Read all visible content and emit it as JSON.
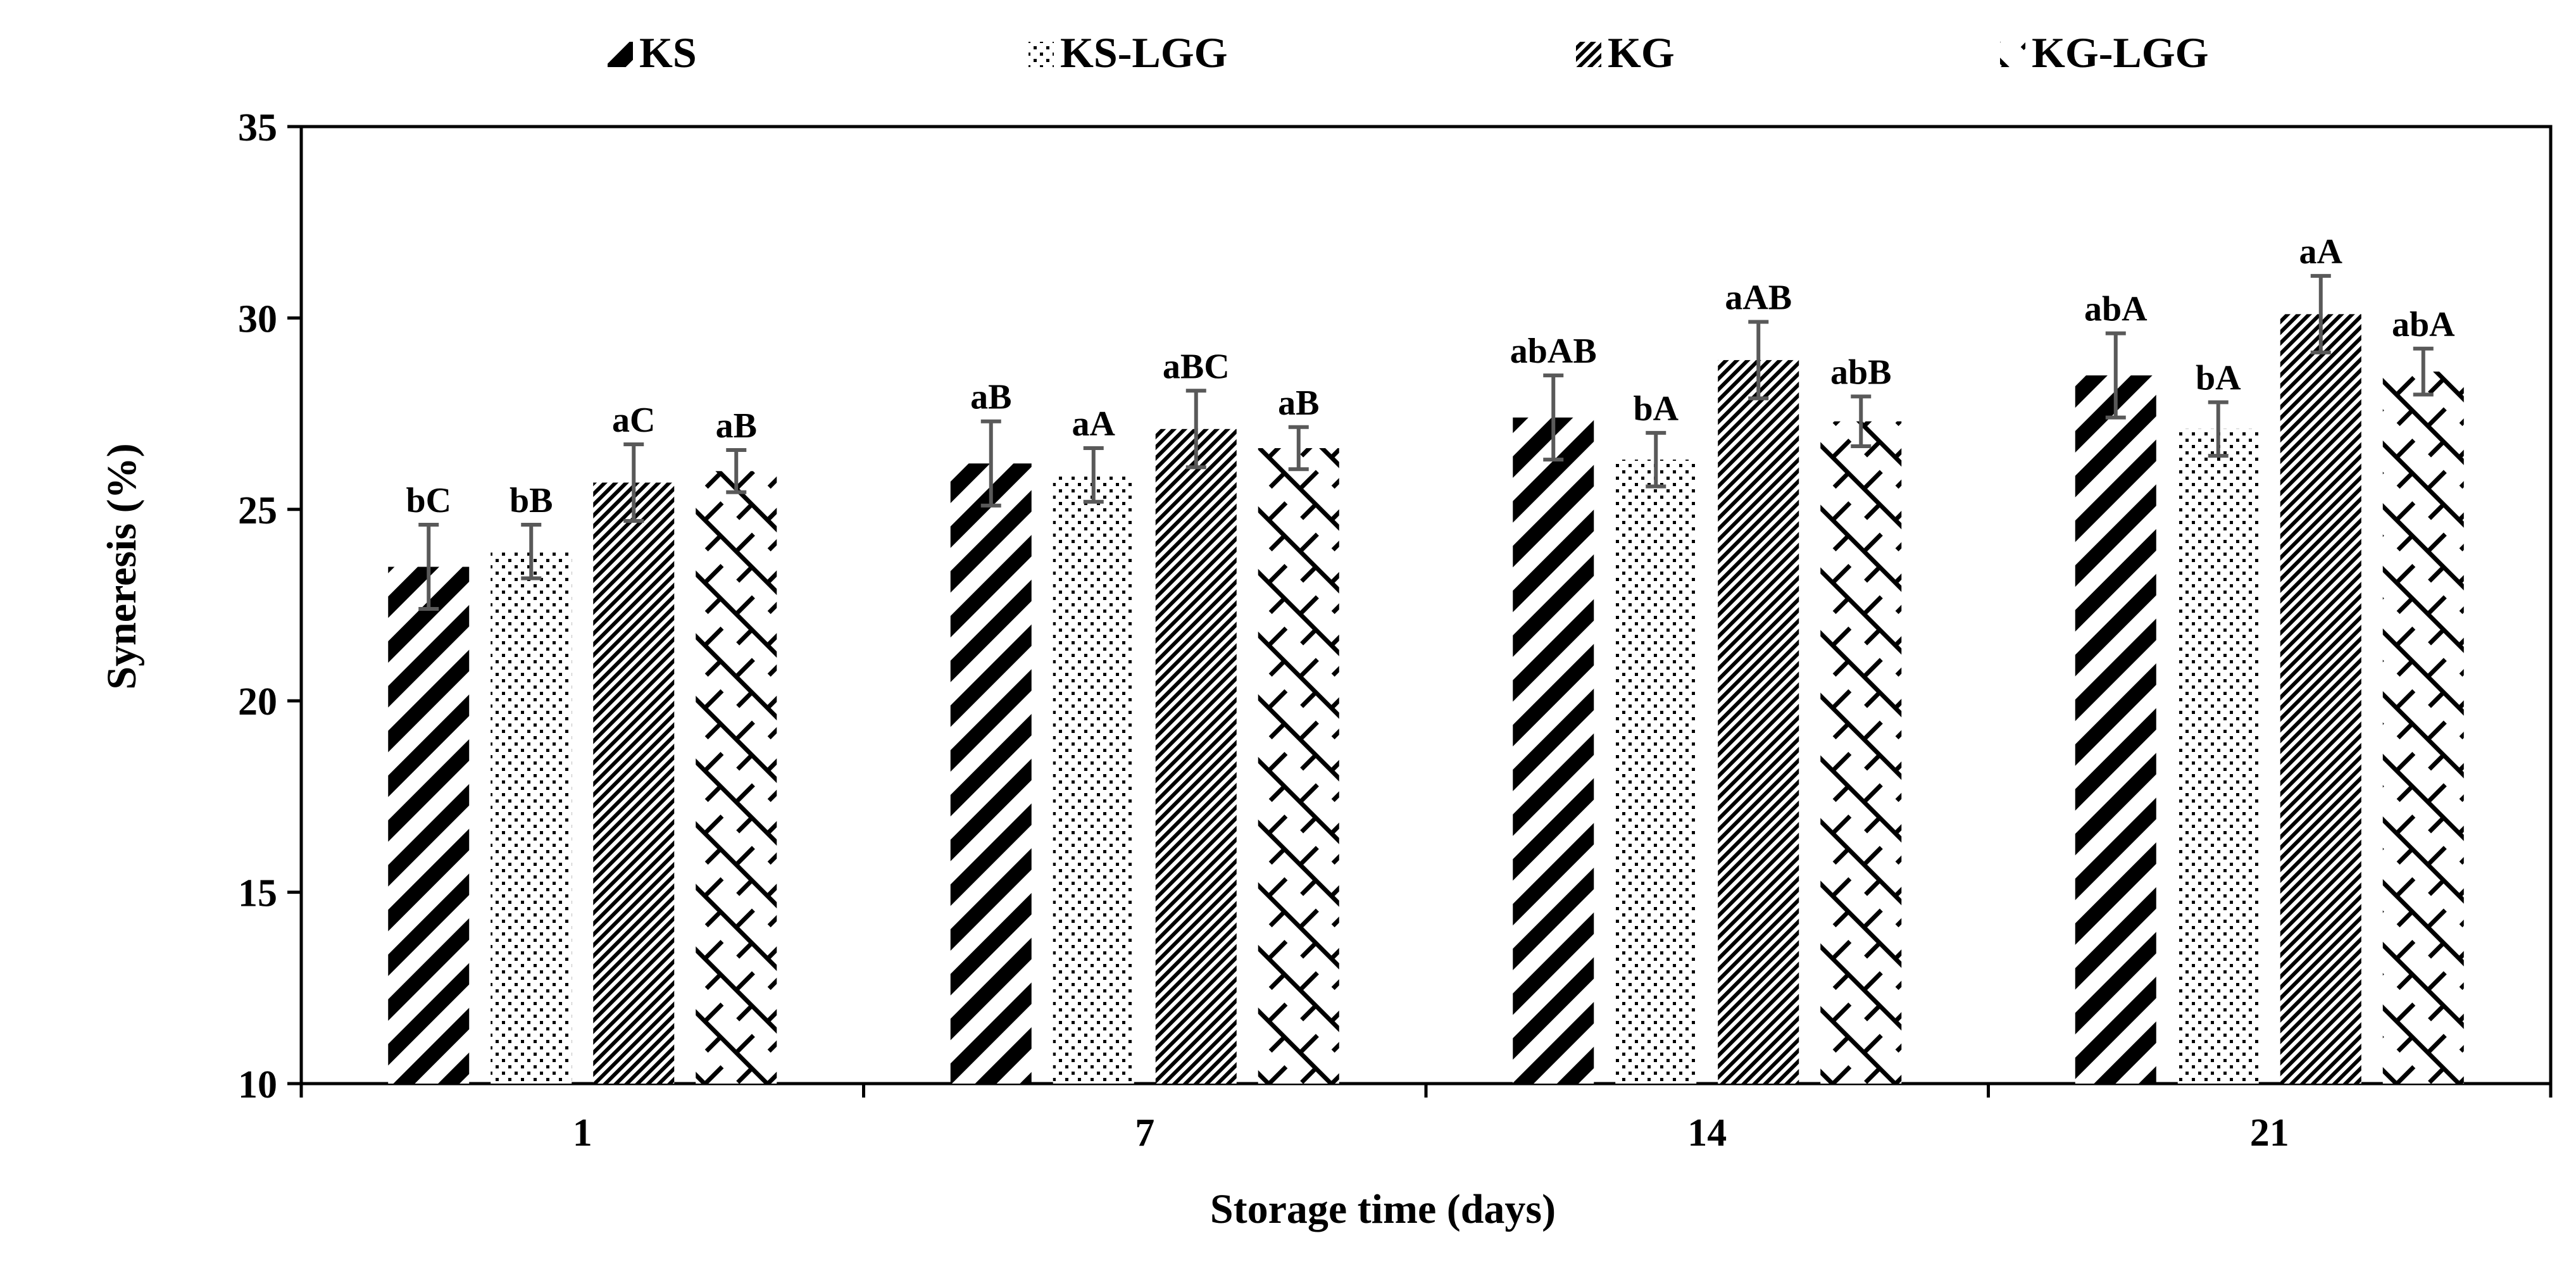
{
  "chart_data": {
    "type": "bar",
    "title": "",
    "xlabel": "Storage time (days)",
    "ylabel": "Syneresis (%)",
    "ylim": [
      10,
      35
    ],
    "yticks": [
      "10",
      "15",
      "20",
      "25",
      "30",
      "35"
    ],
    "categories": [
      "1",
      "7",
      "14",
      "21"
    ],
    "legend_position": "top",
    "grid": false,
    "series": [
      {
        "name": "KS",
        "pattern": "diagonal-thick",
        "values": [
          23.5,
          26.2,
          27.4,
          28.5
        ],
        "errors": [
          1.1,
          1.1,
          1.1,
          1.1
        ],
        "labels": [
          "bC",
          "aB",
          "abAB",
          "abA"
        ]
      },
      {
        "name": "KS-LGG",
        "pattern": "dots",
        "values": [
          23.9,
          25.9,
          26.3,
          27.1
        ],
        "errors": [
          0.7,
          0.7,
          0.7,
          0.7
        ],
        "labels": [
          "bB",
          "aA",
          "bA",
          "bA"
        ]
      },
      {
        "name": "KG",
        "pattern": "diagonal-fine",
        "values": [
          25.7,
          27.1,
          28.9,
          30.1
        ],
        "errors": [
          1.0,
          1.0,
          1.0,
          1.0
        ],
        "labels": [
          "aC",
          "aBC",
          "aAB",
          "aA"
        ]
      },
      {
        "name": "KG-LGG",
        "pattern": "lattice",
        "values": [
          26.0,
          26.6,
          27.3,
          28.6
        ],
        "errors": [
          0.55,
          0.55,
          0.65,
          0.6
        ],
        "labels": [
          "aB",
          "aB",
          "abB",
          "abA"
        ]
      }
    ],
    "colors": {
      "bar_ink": "#000000",
      "error_bar": "#595959",
      "axis": "#000000"
    }
  }
}
